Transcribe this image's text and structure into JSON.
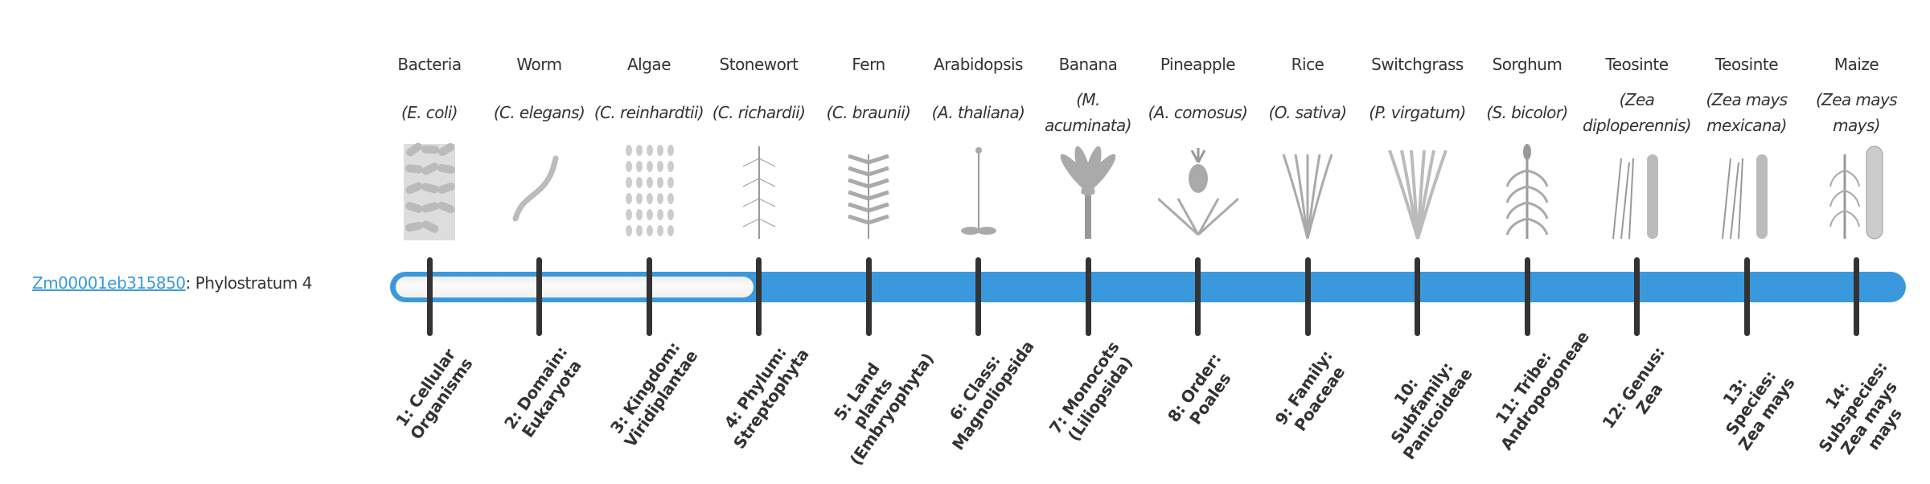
{
  "gene": {
    "id": "Zm00001eb315850",
    "suffix": ": Phylostratum 4",
    "phylostratum": 4
  },
  "colors": {
    "accent": "#3a99dc",
    "tick": "#333333",
    "empty": "#f5f5f5"
  },
  "organisms": [
    {
      "common": "Bacteria",
      "scientific": "(E. coli)",
      "icon": "bacteria-illustration"
    },
    {
      "common": "Worm",
      "scientific": "(C. elegans)",
      "icon": "worm-illustration"
    },
    {
      "common": "Algae",
      "scientific": "(C. reinhardtii)",
      "icon": "algae-illustration"
    },
    {
      "common": "Stonewort",
      "scientific": "(C. richardii)",
      "icon": "stonewort-illustration"
    },
    {
      "common": "Fern",
      "scientific": "(C. braunii)",
      "icon": "fern-illustration"
    },
    {
      "common": "Arabidopsis",
      "scientific": "(A. thaliana)",
      "icon": "arabidopsis-illustration"
    },
    {
      "common": "Banana",
      "scientific": "(M. acuminata)",
      "icon": "banana-illustration"
    },
    {
      "common": "Pineapple",
      "scientific": "(A. comosus)",
      "icon": "pineapple-illustration"
    },
    {
      "common": "Rice",
      "scientific": "(O. sativa)",
      "icon": "rice-illustration"
    },
    {
      "common": "Switchgrass",
      "scientific": "(P. virgatum)",
      "icon": "switchgrass-illustration"
    },
    {
      "common": "Sorghum",
      "scientific": "(S. bicolor)",
      "icon": "sorghum-illustration"
    },
    {
      "common": "Teosinte",
      "scientific": "(Zea diploperennis)",
      "icon": "teosinte-illustration"
    },
    {
      "common": "Teosinte",
      "scientific": "(Zea mays mexicana)",
      "icon": "teosinte-illustration"
    },
    {
      "common": "Maize",
      "scientific": "(Zea mays mays)",
      "icon": "maize-illustration"
    }
  ],
  "strata": [
    "1: Cellular Organisms",
    "2: Domain: Eukaryota",
    "3: Kingdom: Viridiplantae",
    "4: Phylum: Streptophyta",
    "5: Land plants (Embryophyta)",
    "6: Class: Magnoliopsida",
    "7: Monocots (Liliopsida)",
    "8: Order: Poales",
    "9: Family: Poaceae",
    "10: Subfamily: Panicoideae",
    "11: Tribe: Andropogoneae",
    "12: Genus: Zea",
    "13: Species: Zea mays",
    "14: Subspecies: Zea mays mays"
  ]
}
